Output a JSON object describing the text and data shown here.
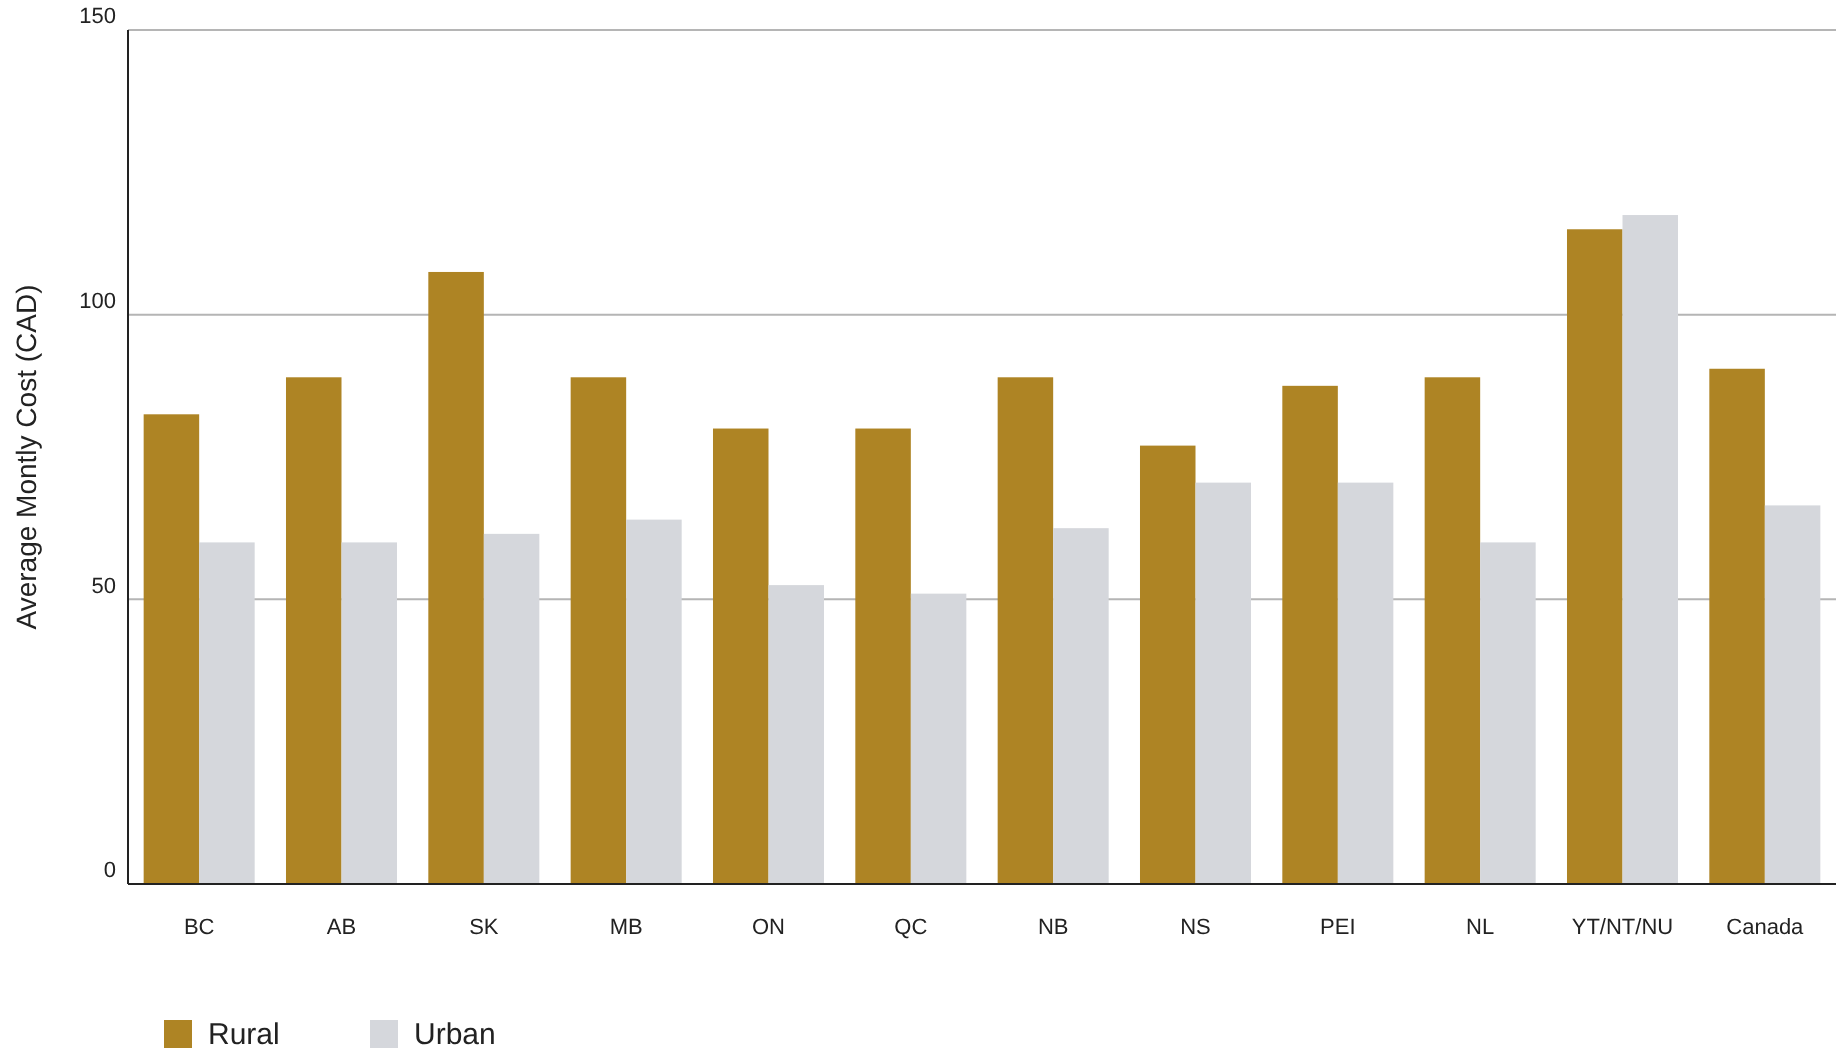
{
  "chart_data": {
    "type": "bar",
    "ylabel": "Average Montly Cost (CAD)",
    "categories": [
      "BC",
      "AB",
      "SK",
      "MB",
      "ON",
      "QC",
      "NB",
      "NS",
      "PEI",
      "NL",
      "YT/NT/NU",
      "Canada"
    ],
    "series": [
      {
        "name": "Rural",
        "color": "#ae8424",
        "values": [
          82.5,
          89,
          107.5,
          89,
          80,
          80,
          89,
          77,
          87.5,
          89,
          115,
          90.5
        ]
      },
      {
        "name": "Urban",
        "color": "#d5d7dc",
        "values": [
          60,
          60,
          61.5,
          64,
          52.5,
          51,
          62.5,
          70.5,
          70.5,
          60,
          117.5,
          66.5
        ]
      }
    ],
    "ylim": [
      0,
      150
    ],
    "yticks": [
      0,
      50,
      100,
      150
    ],
    "grid": "y",
    "legend": "bottom left"
  }
}
